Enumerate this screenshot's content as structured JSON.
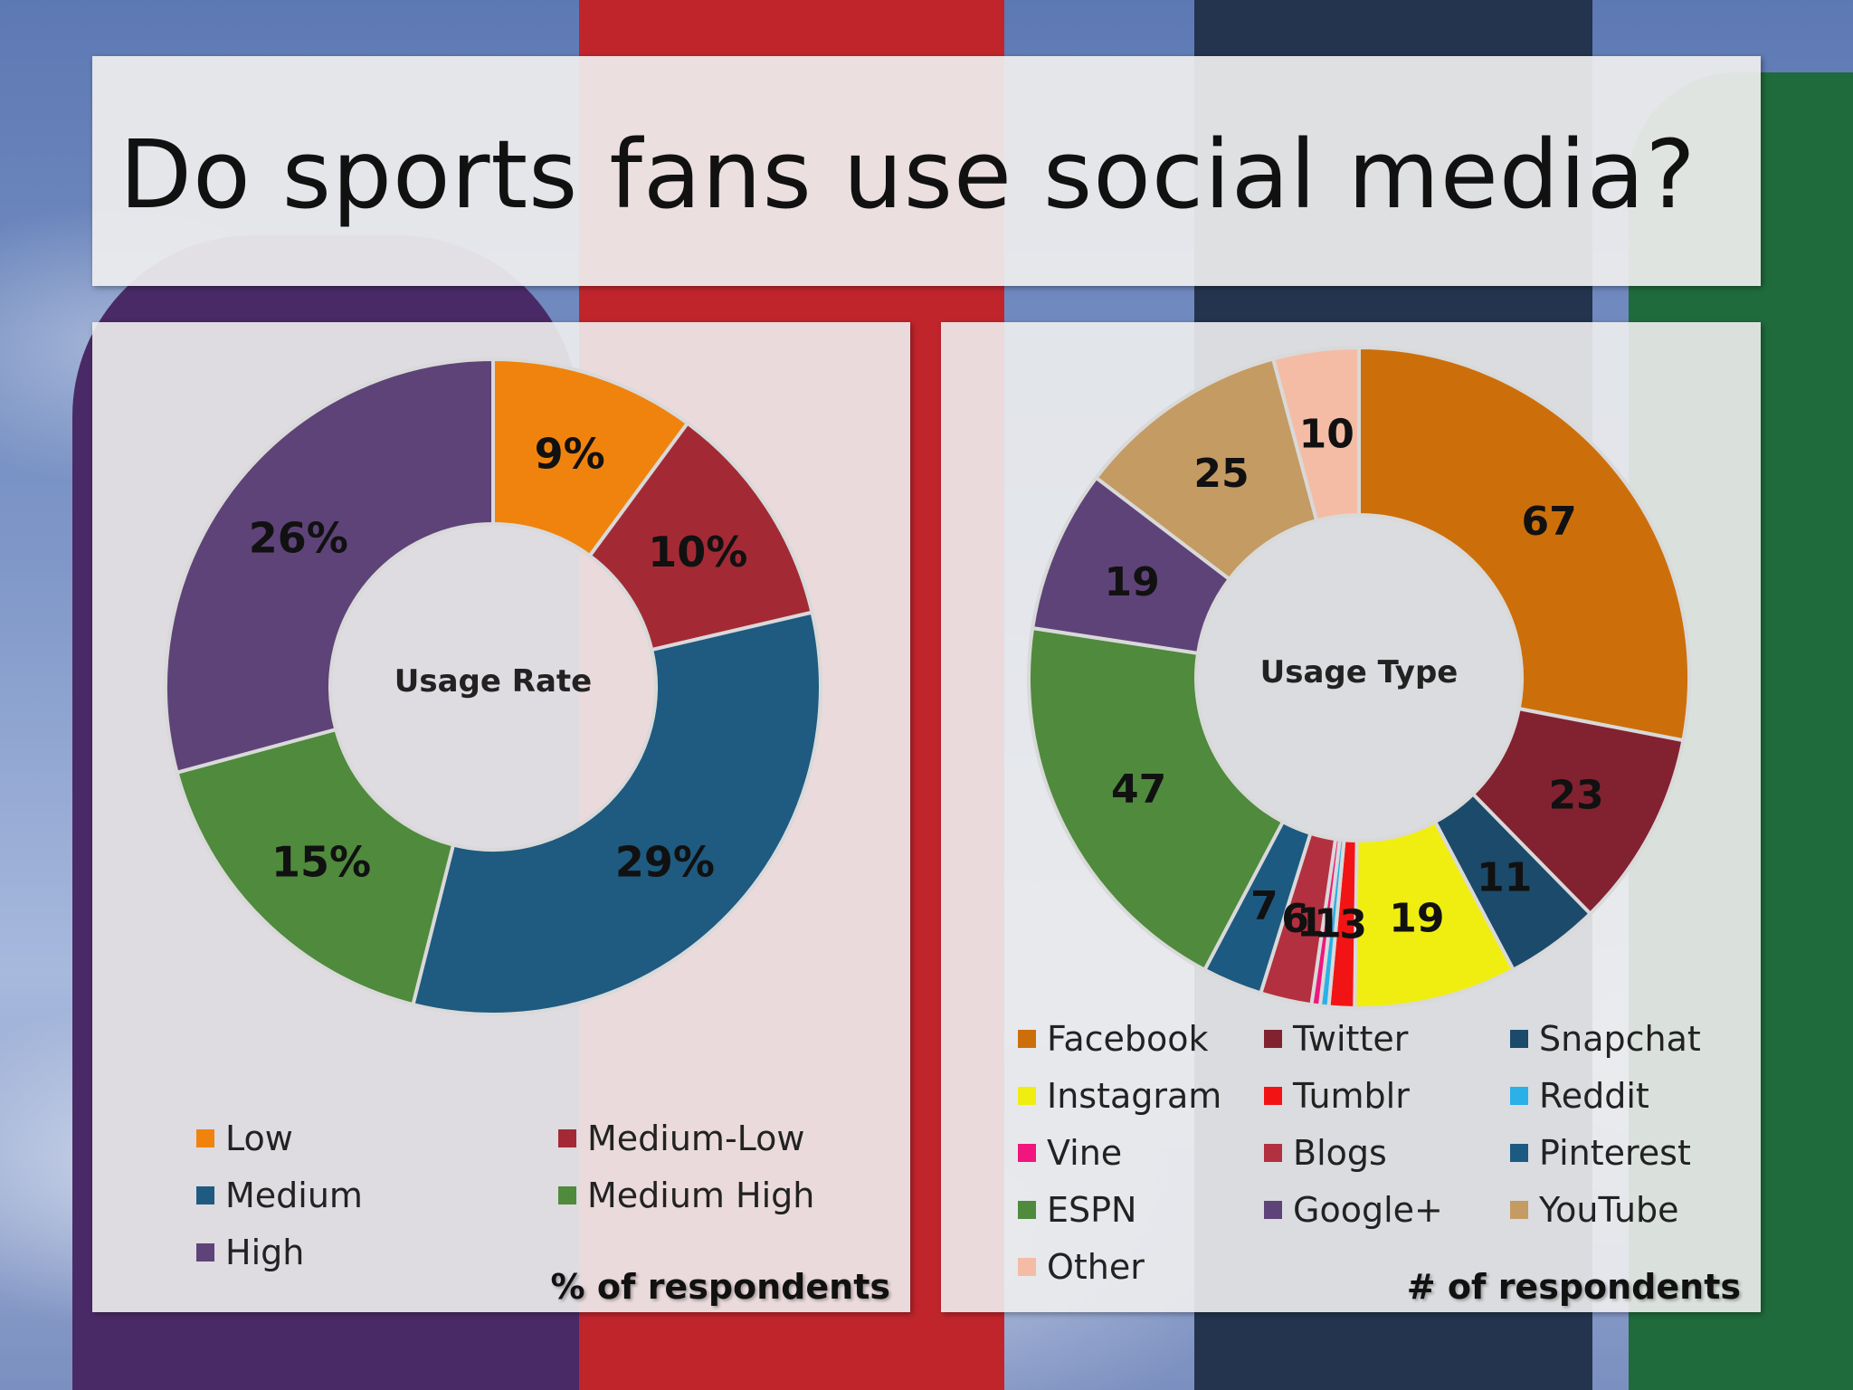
{
  "slide": {
    "title": "Do sports fans use social media?"
  },
  "chart_data": [
    {
      "type": "pie",
      "center_label": "Usage Rate",
      "footer": "% of respondents",
      "legend_placement": "bottom",
      "slices": [
        {
          "name": "Low",
          "value": 9,
          "label": "9%",
          "color": "#f0830e"
        },
        {
          "name": "Medium-Low",
          "value": 10,
          "label": "10%",
          "color": "#a32a35"
        },
        {
          "name": "Medium",
          "value": 29,
          "label": "29%",
          "color": "#1f5a80"
        },
        {
          "name": "Medium High",
          "value": 15,
          "label": "15%",
          "color": "#4f8a3d"
        },
        {
          "name": "High",
          "value": 26,
          "label": "26%",
          "color": "#5e4378"
        }
      ]
    },
    {
      "type": "pie",
      "center_label": "Usage Type",
      "footer": "# of respondents",
      "legend_placement": "bottom",
      "slices": [
        {
          "name": "Facebook",
          "value": 67,
          "label": "67",
          "color": "#cc6f0b"
        },
        {
          "name": "Twitter",
          "value": 23,
          "label": "23",
          "color": "#822231"
        },
        {
          "name": "Snapchat",
          "value": 11,
          "label": "11",
          "color": "#1b4a6b"
        },
        {
          "name": "Instagram",
          "value": 19,
          "label": "19",
          "color": "#f0ee10"
        },
        {
          "name": "Tumblr",
          "value": 3,
          "label": "3",
          "color": "#f21414"
        },
        {
          "name": "Reddit",
          "value": 1,
          "label": "1",
          "color": "#2bb0e8"
        },
        {
          "name": "Vine",
          "value": 1,
          "label": "1",
          "color": "#f0167e"
        },
        {
          "name": "Blogs",
          "value": 6,
          "label": "6",
          "color": "#b33040"
        },
        {
          "name": "Pinterest",
          "value": 7,
          "label": "7",
          "color": "#1d5a82"
        },
        {
          "name": "ESPN",
          "value": 47,
          "label": "47",
          "color": "#4f8a3d"
        },
        {
          "name": "Google+",
          "value": 19,
          "label": "19",
          "color": "#5e4378"
        },
        {
          "name": "YouTube",
          "value": 25,
          "label": "25",
          "color": "#c49b63"
        },
        {
          "name": "Other",
          "value": 10,
          "label": "10",
          "color": "#f4bca5"
        }
      ]
    }
  ]
}
